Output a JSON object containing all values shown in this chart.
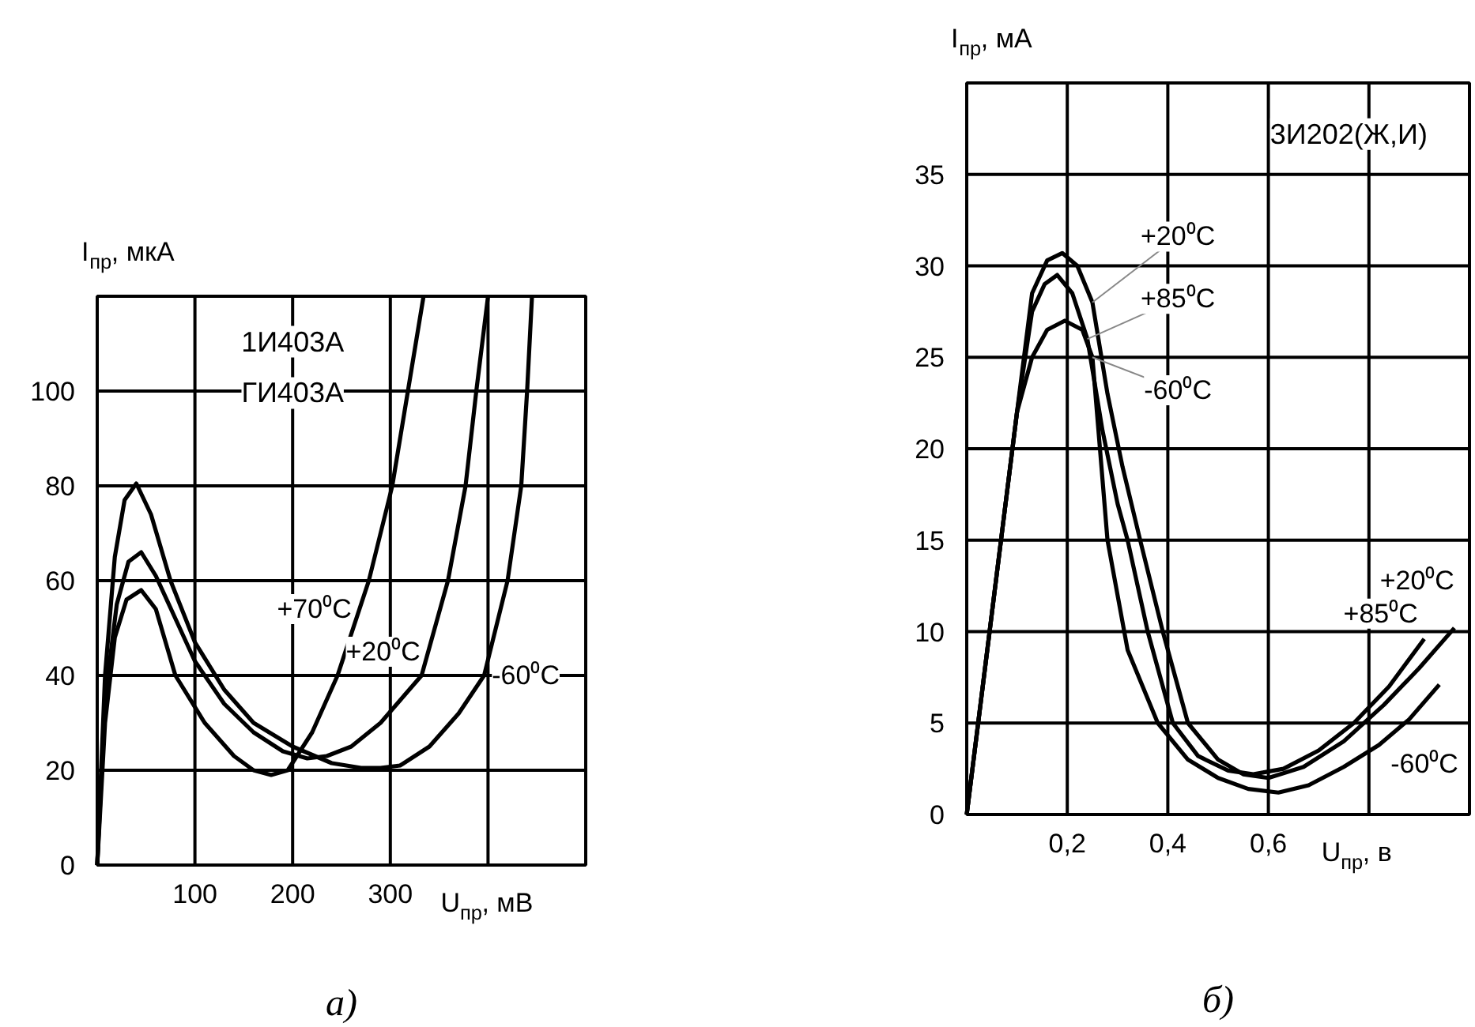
{
  "chart_data": [
    {
      "type": "line",
      "ylabel": "I$_{пр}$, мкА",
      "xlabel": "U$_{пр}$, мВ",
      "annotations": [
        "1И403А",
        "ГИ403А",
        "а)"
      ],
      "xlim": [
        0,
        500
      ],
      "ylim": [
        0,
        120
      ],
      "xticks": [
        {
          "value": 0,
          "label": null
        },
        100,
        200,
        300,
        {
          "value": 400,
          "label": null
        }
      ],
      "yticks": [
        0,
        20,
        40,
        60,
        80,
        100
      ],
      "grid": true,
      "legend": false,
      "marker": "none",
      "line_style": "solid",
      "series": [
        {
          "name": "-60⁰C",
          "color": "#000000",
          "x": [
            0,
            8,
            18,
            28,
            40,
            55,
            75,
            100,
            130,
            160,
            200,
            240,
            270,
            290,
            310,
            340,
            370,
            396,
            420,
            434,
            440,
            445
          ],
          "values": [
            0,
            40,
            65,
            77,
            80.5,
            74,
            60,
            47,
            37,
            30,
            25,
            21.5,
            20.5,
            20.5,
            21,
            25,
            32,
            40,
            60,
            80,
            100,
            120
          ]
        },
        {
          "name": "+20⁰C",
          "color": "#000000",
          "x": [
            0,
            8,
            20,
            32,
            45,
            60,
            80,
            100,
            130,
            160,
            190,
            215,
            235,
            260,
            290,
            332,
            359,
            377,
            388,
            400
          ],
          "values": [
            0,
            35,
            55,
            64,
            66,
            61,
            52,
            43,
            34,
            28,
            24,
            22.5,
            23,
            25,
            30,
            40,
            60,
            80,
            100,
            120
          ]
        },
        {
          "name": "+70⁰C",
          "color": "#000000",
          "x": [
            0,
            8,
            18,
            30,
            45,
            60,
            80,
            110,
            140,
            160,
            178,
            195,
            220,
            246,
            278,
            302,
            318,
            334
          ],
          "values": [
            0,
            30,
            48,
            56,
            58,
            54,
            40,
            30,
            23,
            20,
            19,
            20,
            28,
            40,
            60,
            80,
            100,
            120
          ]
        }
      ]
    },
    {
      "type": "line",
      "ylabel": "I$_{пр}$, мА",
      "xlabel": "U$_{пр}$, в",
      "annotations": [
        "3И202(Ж,И)",
        "б)"
      ],
      "xlim": [
        0,
        1.0
      ],
      "ylim": [
        0,
        40
      ],
      "xticks": [
        {
          "value": 0,
          "label": null
        },
        {
          "value": 0.2,
          "label": "0,2"
        },
        {
          "value": 0.4,
          "label": "0,4"
        },
        {
          "value": 0.6,
          "label": "0,6"
        },
        {
          "value": 0.8,
          "label": null
        }
      ],
      "yticks": [
        0,
        5,
        10,
        15,
        20,
        25,
        30,
        35
      ],
      "grid": true,
      "legend": false,
      "marker": "none",
      "line_style": "solid",
      "series": [
        {
          "name": "+20⁰C",
          "color": "#000000",
          "x": [
            0,
            0.05,
            0.1,
            0.13,
            0.16,
            0.19,
            0.22,
            0.25,
            0.28,
            0.31,
            0.345,
            0.39,
            0.44,
            0.5,
            0.55,
            0.6,
            0.67,
            0.75,
            0.83,
            0.9,
            0.97
          ],
          "values": [
            0,
            11,
            22,
            28.5,
            30.3,
            30.7,
            30,
            28,
            23,
            19,
            15,
            10,
            5,
            3,
            2.2,
            2.0,
            2.6,
            4,
            6,
            8,
            10.2
          ]
        },
        {
          "name": "+85⁰C",
          "color": "#000000",
          "x": [
            0,
            0.05,
            0.1,
            0.13,
            0.155,
            0.18,
            0.21,
            0.24,
            0.27,
            0.3,
            0.32,
            0.36,
            0.41,
            0.46,
            0.52,
            0.57,
            0.63,
            0.7,
            0.77,
            0.84,
            0.91
          ],
          "values": [
            0,
            11,
            22,
            27.5,
            29,
            29.5,
            28.5,
            26,
            21,
            17,
            15,
            10,
            5,
            3.2,
            2.4,
            2.2,
            2.5,
            3.5,
            5,
            7,
            9.6
          ]
        },
        {
          "name": "-60⁰C",
          "color": "#000000",
          "x": [
            0,
            0.05,
            0.1,
            0.13,
            0.16,
            0.195,
            0.23,
            0.25,
            0.265,
            0.28,
            0.32,
            0.38,
            0.44,
            0.5,
            0.56,
            0.62,
            0.68,
            0.75,
            0.82,
            0.88,
            0.94
          ],
          "values": [
            0,
            11,
            22,
            25,
            26.5,
            27,
            26.5,
            25,
            20,
            15,
            9,
            5,
            3,
            2,
            1.4,
            1.2,
            1.6,
            2.6,
            3.8,
            5.2,
            7.1
          ]
        }
      ]
    }
  ]
}
